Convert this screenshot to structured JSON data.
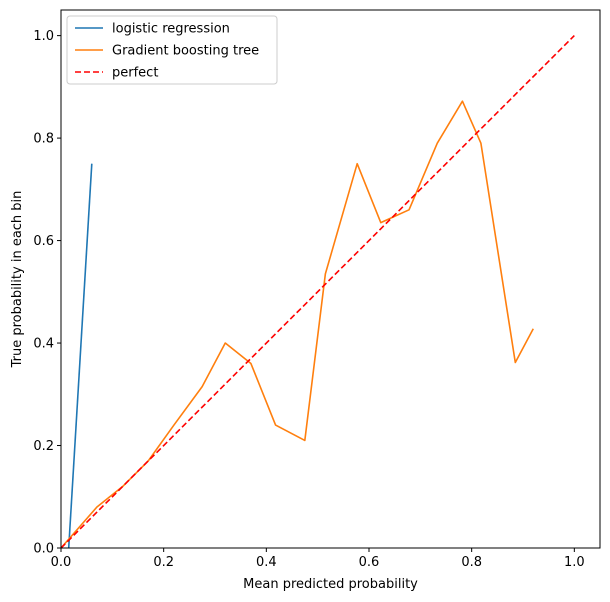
{
  "chart_data": {
    "type": "line",
    "title": "",
    "xlabel": "Mean predicted probability",
    "ylabel": "True probability in each bin",
    "xlim": [
      0.0,
      1.05
    ],
    "ylim": [
      0.0,
      1.05
    ],
    "xticks": [
      0.0,
      0.2,
      0.4,
      0.6,
      0.8,
      1.0
    ],
    "yticks": [
      0.0,
      0.2,
      0.4,
      0.6,
      0.8,
      1.0
    ],
    "xtick_labels": [
      "0.0",
      "0.2",
      "0.4",
      "0.6",
      "0.8",
      "1.0"
    ],
    "ytick_labels": [
      "0.0",
      "0.2",
      "0.4",
      "0.6",
      "0.8",
      "1.0"
    ],
    "grid": false,
    "legend_position": "top-left",
    "series": [
      {
        "name": "logistic regression",
        "color": "#1f77b4",
        "style": "solid",
        "x": [
          0.015,
          0.06
        ],
        "y": [
          0.0,
          0.75
        ]
      },
      {
        "name": "Gradient boosting tree",
        "color": "#ff7f0e",
        "style": "solid",
        "x": [
          0.0,
          0.07,
          0.12,
          0.17,
          0.22,
          0.275,
          0.32,
          0.37,
          0.418,
          0.475,
          0.515,
          0.577,
          0.623,
          0.678,
          0.733,
          0.782,
          0.818,
          0.885,
          0.92
        ],
        "y": [
          0.0,
          0.08,
          0.12,
          0.17,
          0.24,
          0.315,
          0.4,
          0.36,
          0.24,
          0.21,
          0.535,
          0.75,
          0.635,
          0.66,
          0.79,
          0.872,
          0.79,
          0.362,
          0.428
        ]
      },
      {
        "name": "perfect",
        "color": "#ff0000",
        "style": "dashed",
        "x": [
          0.0,
          1.0
        ],
        "y": [
          0.0,
          1.0
        ]
      }
    ]
  }
}
